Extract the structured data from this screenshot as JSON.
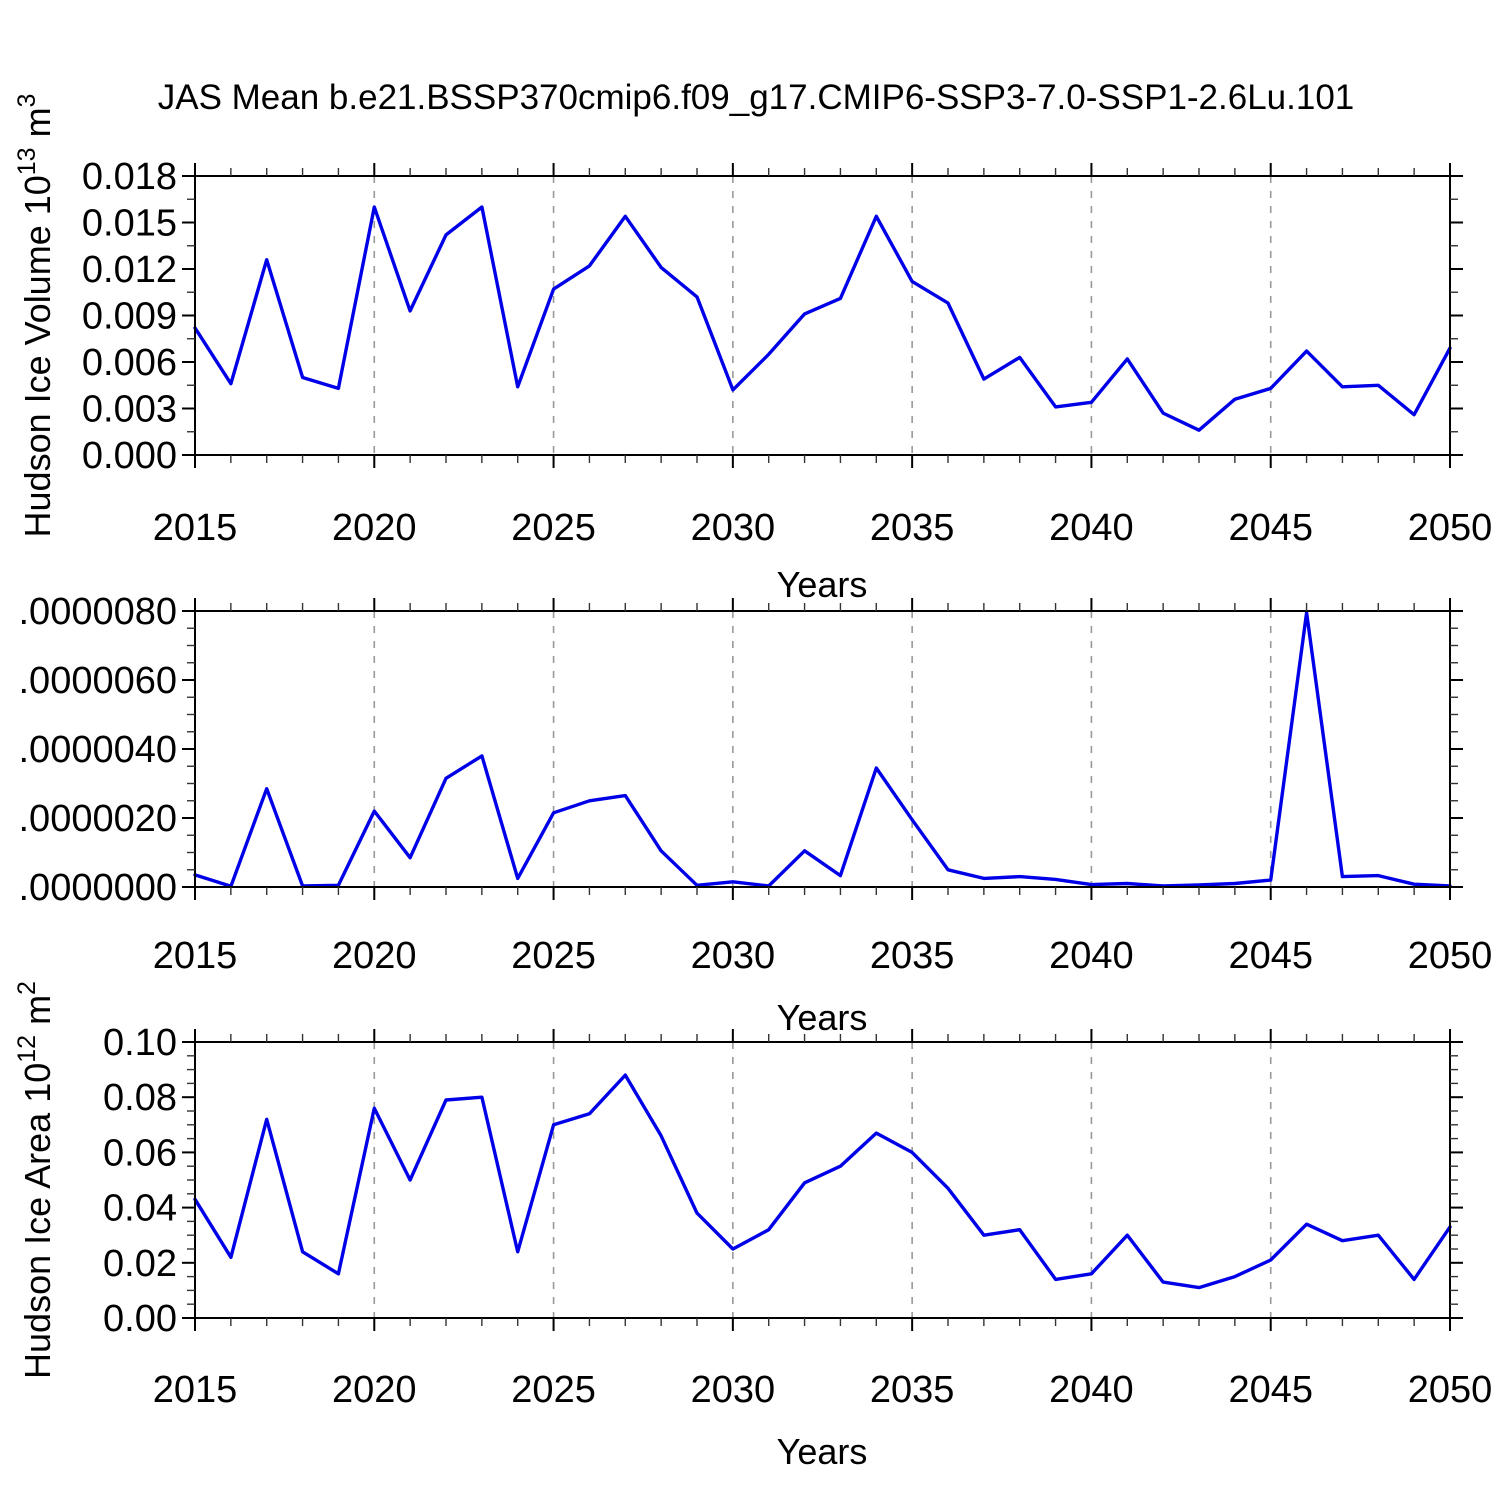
{
  "title": "JAS Mean b.e21.BSSP370cmip6.f09_g17.CMIP6-SSP3-7.0-SSP1-2.6Lu.101",
  "colors": {
    "line": "#0000E8",
    "grid": "#999999",
    "frame": "#000000",
    "minor_tick": "#333333",
    "text": "#000000",
    "background": "#ffffff"
  },
  "chart_data": [
    {
      "type": "line",
      "series_name": "hudson-ice-volume",
      "xlabel": "Years",
      "ylabel_segments": [
        {
          "t": "Hudson Ice Volume 10"
        },
        {
          "t": "13",
          "sup": true
        },
        {
          "t": " m"
        },
        {
          "t": "3",
          "sup": true
        }
      ],
      "xlim": [
        2015,
        2050
      ],
      "ylim": [
        0,
        0.018
      ],
      "x": [
        2015,
        2016,
        2017,
        2018,
        2019,
        2020,
        2021,
        2022,
        2023,
        2024,
        2025,
        2026,
        2027,
        2028,
        2029,
        2030,
        2031,
        2032,
        2033,
        2034,
        2035,
        2036,
        2037,
        2038,
        2039,
        2040,
        2041,
        2042,
        2043,
        2044,
        2045,
        2046,
        2047,
        2048,
        2049,
        2050
      ],
      "values": [
        0.0082,
        0.0046,
        0.0126,
        0.005,
        0.0043,
        0.016,
        0.0093,
        0.0142,
        0.016,
        0.0044,
        0.0107,
        0.0122,
        0.0154,
        0.0121,
        0.0102,
        0.0042,
        0.0065,
        0.0091,
        0.0101,
        0.0154,
        0.0112,
        0.0098,
        0.0049,
        0.0063,
        0.0031,
        0.0034,
        0.0062,
        0.0027,
        0.0016,
        0.0036,
        0.0043,
        0.0067,
        0.0044,
        0.0045,
        0.0026,
        0.0069
      ],
      "yticks": [
        {
          "v": 0.0,
          "label": "0.000"
        },
        {
          "v": 0.003,
          "label": "0.003"
        },
        {
          "v": 0.006,
          "label": "0.006"
        },
        {
          "v": 0.009,
          "label": "0.009"
        },
        {
          "v": 0.012,
          "label": "0.012"
        },
        {
          "v": 0.015,
          "label": "0.015"
        },
        {
          "v": 0.018,
          "label": "0.018"
        }
      ],
      "yminor_step": 0.0015,
      "xticks": [
        {
          "v": 2015,
          "label": "2015"
        },
        {
          "v": 2020,
          "label": "2020"
        },
        {
          "v": 2025,
          "label": "2025"
        },
        {
          "v": 2030,
          "label": "2030"
        },
        {
          "v": 2035,
          "label": "2035"
        },
        {
          "v": 2040,
          "label": "2040"
        },
        {
          "v": 2045,
          "label": "2045"
        },
        {
          "v": 2050,
          "label": "2050"
        }
      ],
      "xminor_step": 1,
      "grid_years": [
        2020,
        2025,
        2030,
        2035,
        2040,
        2045
      ],
      "grid_style": "dashed-vertical",
      "legend": "none"
    },
    {
      "type": "line",
      "series_name": "hudson-ice-series-2",
      "xlabel": "Years",
      "ylabel_segments": [],
      "xlim": [
        2015,
        2050
      ],
      "ylim": [
        0,
        8e-06
      ],
      "x": [
        2015,
        2016,
        2017,
        2018,
        2019,
        2020,
        2021,
        2022,
        2023,
        2024,
        2025,
        2026,
        2027,
        2028,
        2029,
        2030,
        2031,
        2032,
        2033,
        2034,
        2035,
        2036,
        2037,
        2038,
        2039,
        2040,
        2041,
        2042,
        2043,
        2044,
        2045,
        2046,
        2047,
        2048,
        2049,
        2050
      ],
      "values": [
        3.5e-07,
        2e-08,
        2.85e-06,
        3e-08,
        5e-08,
        2.2e-06,
        8.5e-07,
        3.15e-06,
        3.8e-06,
        2.5e-07,
        2.15e-06,
        2.5e-06,
        2.65e-06,
        1.05e-06,
        5e-08,
        1.5e-07,
        3e-08,
        1.05e-06,
        3.3e-07,
        3.45e-06,
        1.95e-06,
        5e-07,
        2.5e-07,
        3e-07,
        2.2e-07,
        7e-08,
        1e-07,
        3e-08,
        6e-08,
        1e-07,
        2e-07,
        7.95e-06,
        3e-07,
        3.3e-07,
        8e-08,
        3e-08
      ],
      "yticks": [
        {
          "v": 0,
          "label": ".0000000"
        },
        {
          "v": 2e-06,
          "label": ".0000020"
        },
        {
          "v": 4e-06,
          "label": ".0000040"
        },
        {
          "v": 6e-06,
          "label": ".0000060"
        },
        {
          "v": 8e-06,
          "label": ".0000080"
        }
      ],
      "yminor_step": 5e-07,
      "xticks": [
        {
          "v": 2015,
          "label": "2015"
        },
        {
          "v": 2020,
          "label": "2020"
        },
        {
          "v": 2025,
          "label": "2025"
        },
        {
          "v": 2030,
          "label": "2030"
        },
        {
          "v": 2035,
          "label": "2035"
        },
        {
          "v": 2040,
          "label": "2040"
        },
        {
          "v": 2045,
          "label": "2045"
        },
        {
          "v": 2050,
          "label": "2050"
        }
      ],
      "xminor_step": 1,
      "grid_years": [
        2020,
        2025,
        2030,
        2035,
        2040,
        2045
      ],
      "grid_style": "dashed-vertical",
      "legend": "none"
    },
    {
      "type": "line",
      "series_name": "hudson-ice-area",
      "xlabel": "Years",
      "ylabel_segments": [
        {
          "t": "Hudson Ice Area 10"
        },
        {
          "t": "12",
          "sup": true
        },
        {
          "t": " m"
        },
        {
          "t": "2",
          "sup": true
        }
      ],
      "xlim": [
        2015,
        2050
      ],
      "ylim": [
        0,
        0.1
      ],
      "x": [
        2015,
        2016,
        2017,
        2018,
        2019,
        2020,
        2021,
        2022,
        2023,
        2024,
        2025,
        2026,
        2027,
        2028,
        2029,
        2030,
        2031,
        2032,
        2033,
        2034,
        2035,
        2036,
        2037,
        2038,
        2039,
        2040,
        2041,
        2042,
        2043,
        2044,
        2045,
        2046,
        2047,
        2048,
        2049,
        2050
      ],
      "values": [
        0.043,
        0.022,
        0.072,
        0.024,
        0.016,
        0.076,
        0.05,
        0.079,
        0.08,
        0.024,
        0.07,
        0.074,
        0.088,
        0.066,
        0.038,
        0.025,
        0.032,
        0.049,
        0.055,
        0.067,
        0.06,
        0.047,
        0.03,
        0.032,
        0.014,
        0.016,
        0.03,
        0.013,
        0.011,
        0.015,
        0.021,
        0.034,
        0.028,
        0.03,
        0.014,
        0.033
      ],
      "yticks": [
        {
          "v": 0.0,
          "label": "0.00"
        },
        {
          "v": 0.02,
          "label": "0.02"
        },
        {
          "v": 0.04,
          "label": "0.04"
        },
        {
          "v": 0.06,
          "label": "0.06"
        },
        {
          "v": 0.08,
          "label": "0.08"
        },
        {
          "v": 0.1,
          "label": "0.10"
        }
      ],
      "yminor_step": 0.005,
      "xticks": [
        {
          "v": 2015,
          "label": "2015"
        },
        {
          "v": 2020,
          "label": "2020"
        },
        {
          "v": 2025,
          "label": "2025"
        },
        {
          "v": 2030,
          "label": "2030"
        },
        {
          "v": 2035,
          "label": "2035"
        },
        {
          "v": 2040,
          "label": "2040"
        },
        {
          "v": 2045,
          "label": "2045"
        },
        {
          "v": 2050,
          "label": "2050"
        }
      ],
      "xminor_step": 1,
      "grid_years": [
        2020,
        2025,
        2030,
        2035,
        2040,
        2045
      ],
      "grid_style": "dashed-vertical",
      "legend": "none"
    }
  ]
}
